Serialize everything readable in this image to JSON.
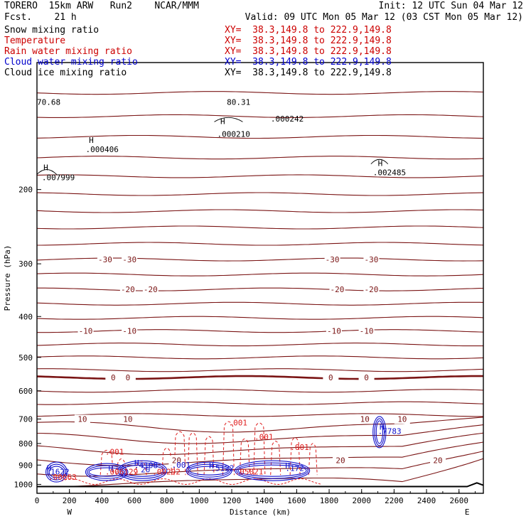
{
  "header": {
    "model": "TORERO  15km ARW   Run2    NCAR/MMM",
    "fcst": "Fcst.    21 h",
    "init": "Init: 12 UTC Sun 04 Mar 12",
    "valid": "Valid: 09 UTC Mon 05 Mar 12 (03 CST Mon 05 Mar 12)",
    "fields": [
      {
        "name": "Snow mixing ratio",
        "xy": "XY=  38.3,149.8 to 222.9,149.8",
        "color": "#000000",
        "xy_color": "#cc0000"
      },
      {
        "name": "Temperature",
        "xy": "XY=  38.3,149.8 to 222.9,149.8",
        "color": "#cc0000",
        "xy_color": "#cc0000"
      },
      {
        "name": "Rain water mixing ratio",
        "xy": "XY=  38.3,149.8 to 222.9,149.8",
        "color": "#cc0000",
        "xy_color": "#cc0000"
      },
      {
        "name": "Cloud water mixing ratio",
        "xy": "XY=  38.3,149.8 to 222.9,149.8",
        "color": "#0000cc",
        "xy_color": "#0000cc"
      },
      {
        "name": "Cloud ice mixing ratio",
        "xy": "XY=  38.3,149.8 to 222.9,149.8",
        "color": "#000000",
        "xy_color": "#000000"
      }
    ]
  },
  "chart_data": {
    "type": "line",
    "title": "",
    "xlabel": "Distance (km)",
    "ylabel": "Pressure (hPa)",
    "xlim": [
      0,
      2750
    ],
    "ylim_pressure": [
      100,
      1050
    ],
    "y_scale": "log-pressure",
    "x_ticks": [
      0,
      200,
      400,
      600,
      800,
      1000,
      1200,
      1400,
      1600,
      1800,
      2000,
      2200,
      2400,
      2600
    ],
    "y_ticks": [
      200,
      300,
      400,
      500,
      600,
      700,
      800,
      900,
      1000
    ],
    "end_labels": {
      "west": "W",
      "east": "E"
    },
    "grid": false,
    "colors": {
      "temperature": "#7a1414",
      "freezing": "#7a1414",
      "rain": "#e02020",
      "cloud_water": "#1010cc",
      "snow": "#000000",
      "ground": "#000000"
    },
    "temperature_labels": [
      {
        "text": "-30",
        "x": [
          420,
          570,
          1820,
          2060
        ]
      },
      {
        "text": "-20",
        "x": [
          560,
          700,
          1850,
          2060
        ]
      },
      {
        "text": "-10",
        "x": [
          300,
          570,
          1830,
          2030
        ]
      },
      {
        "text": "0",
        "x": [
          470,
          560,
          1810,
          2030
        ]
      },
      {
        "text": "10",
        "x": [
          280,
          560,
          2020,
          2250
        ]
      },
      {
        "text": "20",
        "x": [
          860,
          1870,
          2470
        ]
      }
    ],
    "snow_labels": [
      {
        "text": "H",
        "x": 40,
        "p": 180
      },
      {
        "text": ".007999",
        "x": 30,
        "p": 190
      },
      {
        "text": "H",
        "x": 320,
        "p": 155
      },
      {
        "text": ".000406",
        "x": 300,
        "p": 163
      },
      {
        "text": "H",
        "x": 1130,
        "p": 140
      },
      {
        "text": ".000210",
        "x": 1110,
        "p": 150
      },
      {
        "text": "H",
        "x": 2100,
        "p": 176
      },
      {
        "text": ".002485",
        "x": 2070,
        "p": 185
      },
      {
        "text": "70.68",
        "x": 0,
        "p": 126
      },
      {
        "text": ".000242",
        "x": 1440,
        "p": 138
      },
      {
        "text": "80.31",
        "x": 1170,
        "p": 126
      }
    ],
    "rain_labels": [
      {
        "text": ".001",
        "x": 1180,
        "p": 725
      },
      {
        "text": ".001",
        "x": 1340,
        "p": 784
      },
      {
        "text": ".001",
        "x": 1560,
        "p": 828
      },
      {
        "text": ".001",
        "x": 420,
        "p": 850
      },
      {
        "text": ".00663",
        "x": 70,
        "p": 975
      },
      {
        "text": ".006129",
        "x": 420,
        "p": 947
      },
      {
        "text": ".09292",
        "x": 710,
        "p": 947
      },
      {
        "text": ".05021",
        "x": 1220,
        "p": 947
      }
    ],
    "cloud_labels": [
      {
        "text": "H",
        "x": 60,
        "p": 930
      },
      {
        "text": ".1622",
        "x": 55,
        "p": 947
      },
      {
        "text": "H",
        "x": 440,
        "p": 930
      },
      {
        "text": "H",
        "x": 600,
        "p": 902
      },
      {
        "text": ".4108",
        "x": 600,
        "p": 915
      },
      {
        "text": ".001",
        "x": 830,
        "p": 913
      },
      {
        "text": "20",
        "x": 640,
        "p": 937
      },
      {
        "text": "H",
        "x": 1060,
        "p": 917
      },
      {
        "text": ".5122",
        "x": 1070,
        "p": 930
      },
      {
        "text": "H",
        "x": 1530,
        "p": 917
      },
      {
        "text": ".172",
        "x": 1530,
        "p": 930
      },
      {
        "text": "H",
        "x": 2110,
        "p": 742
      },
      {
        "text": ".7783",
        "x": 2100,
        "p": 760
      }
    ]
  }
}
